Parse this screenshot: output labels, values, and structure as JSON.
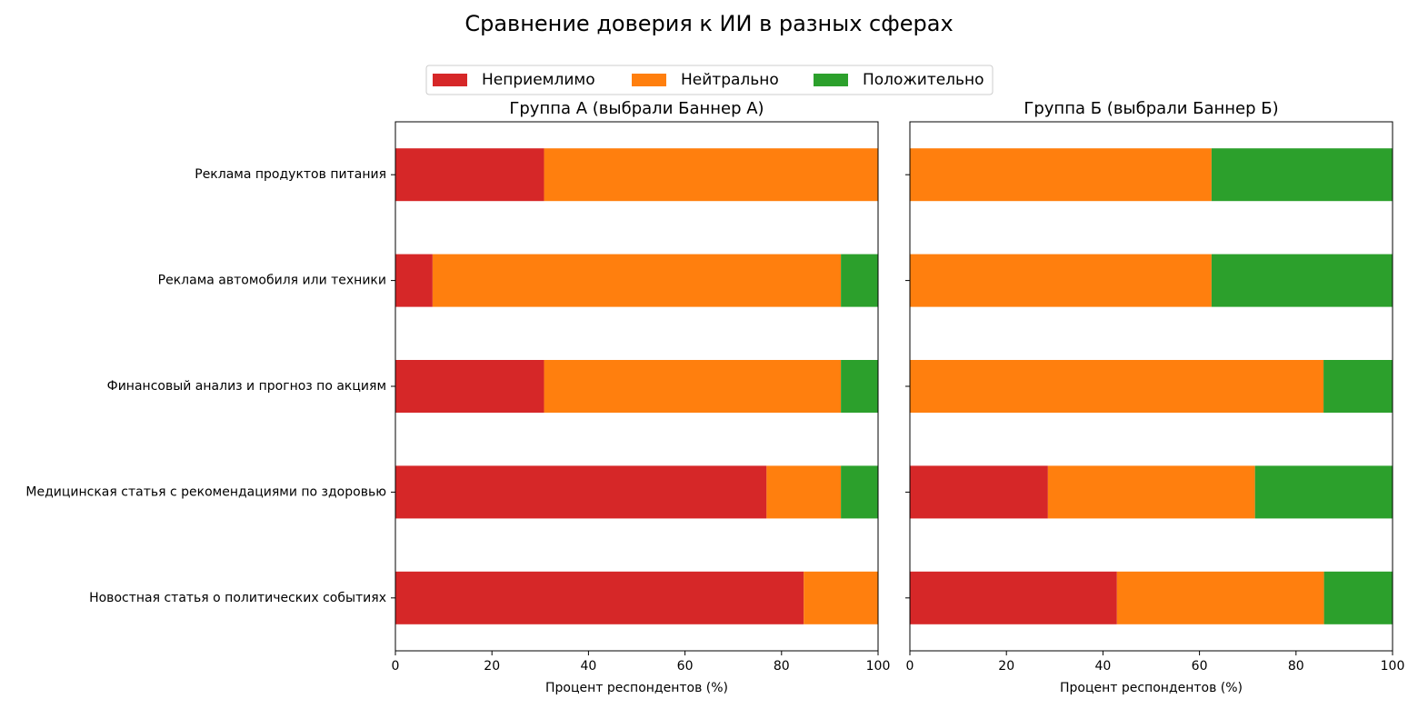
{
  "title": "Сравнение доверия к ИИ в разных сферах",
  "legend_loc": "upper center",
  "series": [
    {
      "name": "Неприемлимо",
      "color": "#d62728"
    },
    {
      "name": "Нейтрально",
      "color": "#ff7f0e"
    },
    {
      "name": "Положительно",
      "color": "#2ca02c"
    }
  ],
  "chart_data": [
    {
      "type": "barh",
      "stacked": true,
      "title": "Группа А (выбрали Баннер А)",
      "categories": [
        "Реклама продуктов питания",
        "Реклама автомобиля или техники",
        "Финансовый анализ и прогноз по акциям",
        "Медицинская статья с рекомендациями по здоровью",
        "Новостная статья о политических событиях"
      ],
      "series": [
        {
          "values": [
            30.8,
            7.7,
            30.8,
            76.9,
            84.6
          ]
        },
        {
          "values": [
            69.2,
            84.6,
            61.5,
            15.4,
            15.4
          ]
        },
        {
          "values": [
            0,
            7.7,
            7.7,
            7.7,
            0
          ]
        }
      ],
      "xlabel": "Процент респондентов (%)",
      "xlim": [
        0,
        100
      ],
      "xticks": [
        0,
        20,
        40,
        60,
        80,
        100
      ]
    },
    {
      "type": "barh",
      "stacked": true,
      "title": "Группа Б (выбрали Баннер Б)",
      "series": [
        {
          "values": [
            0,
            0,
            0,
            28.6,
            42.9
          ]
        },
        {
          "values": [
            62.5,
            62.5,
            85.7,
            42.9,
            42.9
          ]
        },
        {
          "values": [
            37.5,
            37.5,
            14.3,
            28.6,
            14.3
          ]
        }
      ],
      "xlabel": "Процент респондентов (%)",
      "xlim": [
        0,
        100
      ],
      "xticks": [
        0,
        20,
        40,
        60,
        80,
        100
      ]
    }
  ]
}
